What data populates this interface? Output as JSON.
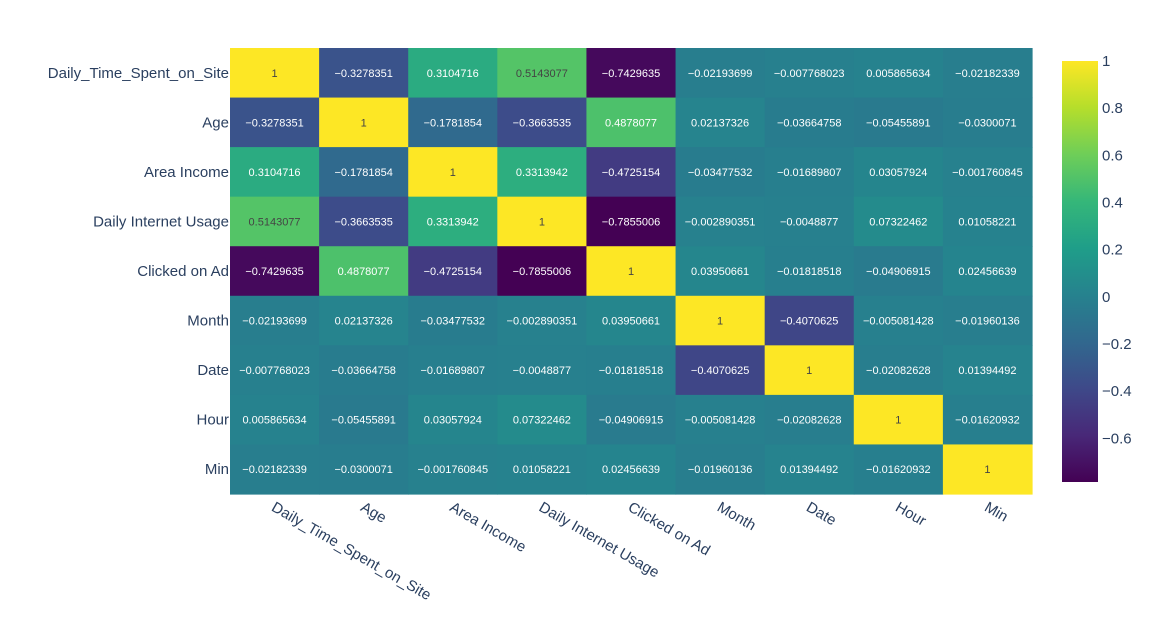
{
  "chart_data": {
    "type": "heatmap",
    "categories": [
      "Daily_Time_Spent_on_Site",
      "Age",
      "Area Income",
      "Daily Internet Usage",
      "Clicked on Ad",
      "Month",
      "Date",
      "Hour",
      "Min"
    ],
    "values": [
      [
        1,
        -0.3278351,
        0.3104716,
        0.5143077,
        -0.7429635,
        -0.02193699,
        -0.007768023,
        0.005865634,
        -0.02182339
      ],
      [
        -0.3278351,
        1,
        -0.1781854,
        -0.3663535,
        0.4878077,
        0.02137326,
        -0.03664758,
        -0.05455891,
        -0.0300071
      ],
      [
        0.3104716,
        -0.1781854,
        1,
        0.3313942,
        -0.4725154,
        -0.03477532,
        -0.01689807,
        0.03057924,
        -0.001760845
      ],
      [
        0.5143077,
        -0.3663535,
        0.3313942,
        1,
        -0.7855006,
        -0.002890351,
        -0.0048877,
        0.07322462,
        0.01058221
      ],
      [
        -0.7429635,
        0.4878077,
        -0.4725154,
        -0.7855006,
        1,
        0.03950661,
        -0.01818518,
        -0.04906915,
        0.02456639
      ],
      [
        -0.02193699,
        0.02137326,
        -0.03477532,
        -0.002890351,
        0.03950661,
        1,
        -0.4070625,
        -0.005081428,
        -0.01960136
      ],
      [
        -0.007768023,
        -0.03664758,
        -0.01689807,
        -0.0048877,
        -0.01818518,
        -0.4070625,
        1,
        -0.02082628,
        0.01394492
      ],
      [
        0.005865634,
        -0.05455891,
        0.03057924,
        0.07322462,
        -0.04906915,
        -0.005081428,
        -0.02082628,
        1,
        -0.01620932
      ],
      [
        -0.02182339,
        -0.0300071,
        -0.001760845,
        0.01058221,
        0.02456639,
        -0.01960136,
        0.01394492,
        -0.01620932,
        1
      ]
    ],
    "labels": [
      [
        "1",
        "−0.3278351",
        "0.3104716",
        "0.5143077",
        "−0.7429635",
        "−0.02193699",
        "−0.007768023",
        "0.005865634",
        "−0.02182339"
      ],
      [
        "−0.3278351",
        "1",
        "−0.1781854",
        "−0.3663535",
        "0.4878077",
        "0.02137326",
        "−0.03664758",
        "−0.05455891",
        "−0.0300071"
      ],
      [
        "0.3104716",
        "−0.1781854",
        "1",
        "0.3313942",
        "−0.4725154",
        "−0.03477532",
        "−0.01689807",
        "0.03057924",
        "−0.001760845"
      ],
      [
        "0.5143077",
        "−0.3663535",
        "0.3313942",
        "1",
        "−0.7855006",
        "−0.002890351",
        "−0.0048877",
        "0.07322462",
        "0.01058221"
      ],
      [
        "−0.7429635",
        "0.4878077",
        "−0.4725154",
        "−0.7855006",
        "1",
        "0.03950661",
        "−0.01818518",
        "−0.04906915",
        "0.02456639"
      ],
      [
        "−0.02193699",
        "0.02137326",
        "−0.03477532",
        "−0.002890351",
        "0.03950661",
        "1",
        "−0.4070625",
        "−0.005081428",
        "−0.01960136"
      ],
      [
        "−0.007768023",
        "−0.03664758",
        "−0.01689807",
        "−0.0048877",
        "−0.01818518",
        "−0.4070625",
        "1",
        "−0.02082628",
        "0.01394492"
      ],
      [
        "0.005865634",
        "−0.05455891",
        "0.03057924",
        "0.07322462",
        "−0.04906915",
        "−0.005081428",
        "−0.02082628",
        "1",
        "−0.01620932"
      ],
      [
        "−0.02182339",
        "−0.0300071",
        "−0.001760845",
        "0.01058221",
        "0.02456639",
        "−0.01960136",
        "0.01394492",
        "−0.01620932",
        "1"
      ]
    ],
    "zmin": -0.7855006,
    "zmax": 1,
    "colorscale": "viridis",
    "colorbar": {
      "ticks": [
        1,
        0.8,
        0.6,
        0.4,
        0.2,
        0,
        -0.2,
        -0.4,
        -0.6
      ],
      "tick_labels": [
        "1",
        "0.8",
        "0.6",
        "0.4",
        "0.2",
        "0",
        "−0.2",
        "−0.4",
        "−0.6"
      ]
    },
    "title": "",
    "xlabel": "",
    "ylabel": "",
    "legend": "colorbar-right"
  },
  "colors": {
    "axis_text": "#2a3f5f",
    "background": "#ffffff",
    "viridis": [
      "#440154",
      "#482878",
      "#3e4989",
      "#31688e",
      "#26828e",
      "#1f9e89",
      "#35b779",
      "#6ece58",
      "#b5de2b",
      "#fde725"
    ]
  }
}
